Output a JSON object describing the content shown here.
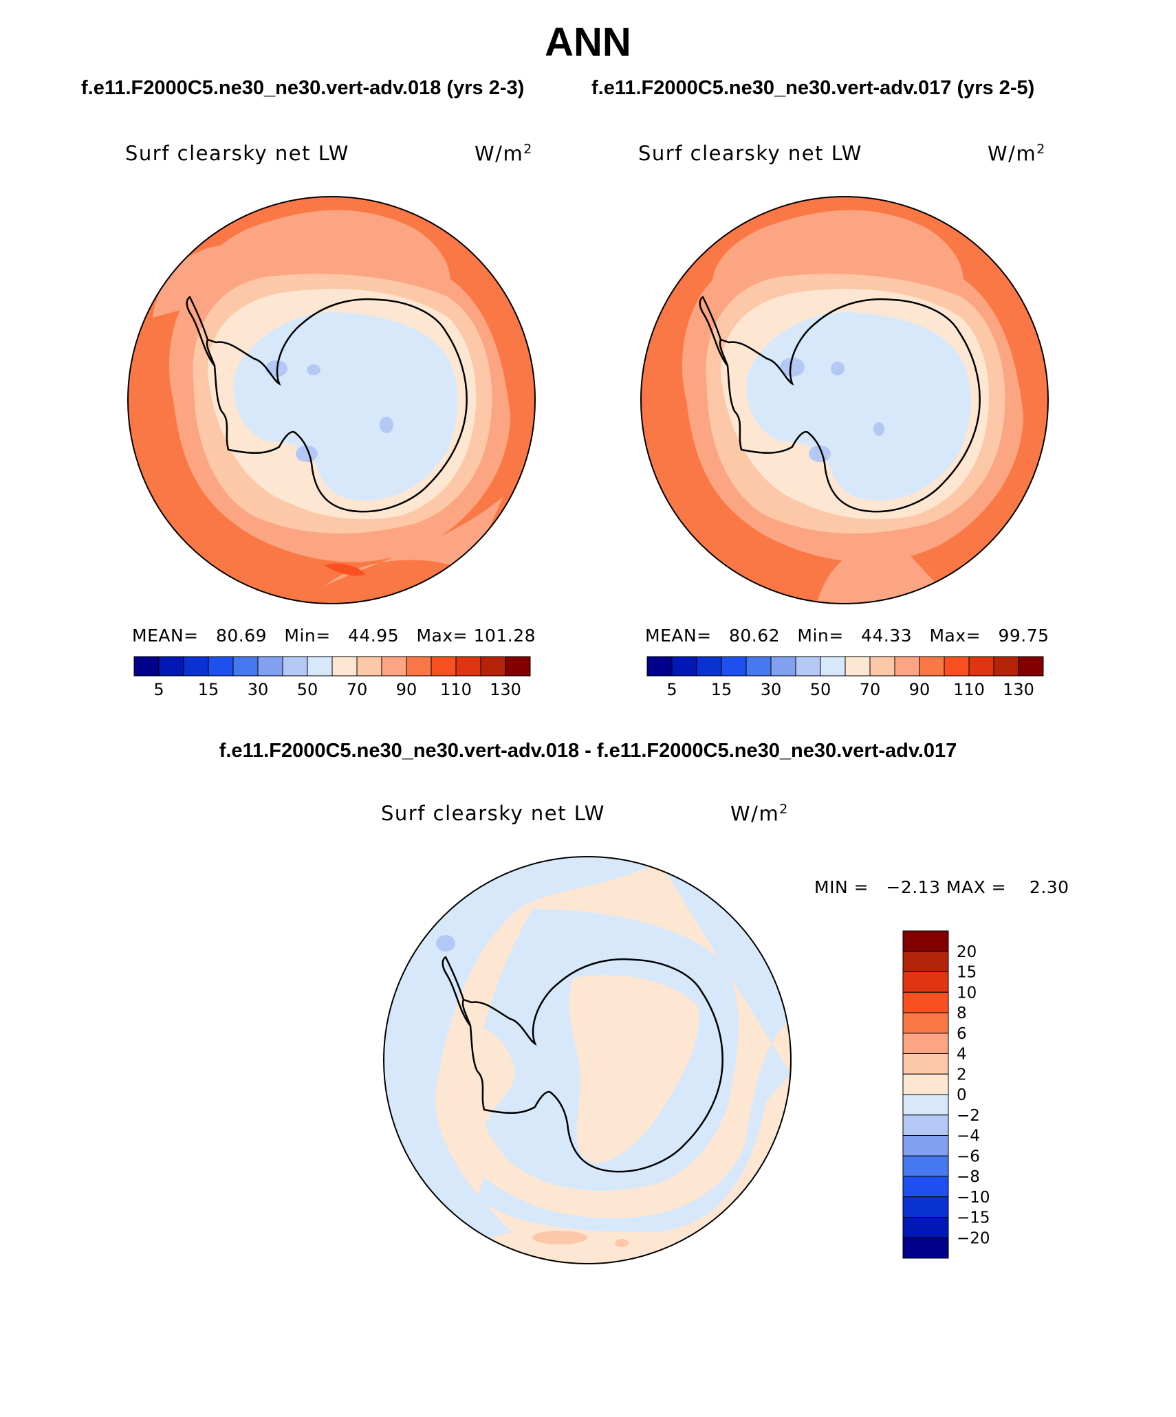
{
  "figure": {
    "title": "ANN",
    "case1_title": "f.e11.F2000C5.ne30_ne30.vert-adv.018 (yrs 2-3)",
    "case2_title": "f.e11.F2000C5.ne30_ne30.vert-adv.017 (yrs 2-5)",
    "diff_title": "f.e11.F2000C5.ne30_ne30.vert-adv.018 - f.e11.F2000C5.ne30_ne30.vert-adv.017"
  },
  "panels": {
    "left": {
      "variable": "Surf clearsky net LW",
      "units_base": "W/m",
      "units_exp": "2",
      "mean_label": "MEAN=",
      "mean": "80.69",
      "min_label": "Min=",
      "min": "44.95",
      "max_label": "Max=",
      "max": "101.28"
    },
    "right": {
      "variable": "Surf clearsky net LW",
      "units_base": "W/m",
      "units_exp": "2",
      "mean_label": "MEAN=",
      "mean": "80.62",
      "min_label": "Min=",
      "min": "44.33",
      "max_label": "Max=",
      "max": "99.75"
    },
    "diff": {
      "variable": "Surf clearsky net LW",
      "units_base": "W/m",
      "units_exp": "2",
      "minmax": "MIN =   −2.13 MAX =    2.30"
    }
  },
  "colorbar_abs": {
    "colors": [
      "#00008b",
      "#0019b4",
      "#0a32d2",
      "#1e50f0",
      "#4678f0",
      "#82a0f0",
      "#b4c8f5",
      "#d7e8fa",
      "#fde6d2",
      "#fcc8a8",
      "#fba582",
      "#fa7846",
      "#fa5020",
      "#e13410",
      "#b42408",
      "#820000"
    ],
    "tick_labels": [
      "5",
      "15",
      "30",
      "50",
      "70",
      "90",
      "110",
      "130"
    ]
  },
  "colorbar_diff": {
    "colors": [
      "#820000",
      "#b42408",
      "#e13410",
      "#fa5020",
      "#fa7846",
      "#fba582",
      "#fcc8a8",
      "#fde6d2",
      "#d7e8fa",
      "#b4c8f5",
      "#82a0f0",
      "#4678f0",
      "#1e50f0",
      "#0a32d2",
      "#0019b4",
      "#00008b"
    ],
    "tick_labels": [
      "20",
      "15",
      "10",
      "8",
      "6",
      "4",
      "2",
      "0",
      "−2",
      "−4",
      "−6",
      "−8",
      "−10",
      "−15",
      "−20"
    ]
  },
  "map_colors": {
    "ocean_far": "#fa7846",
    "ocean_mid": "#fba582",
    "coast_band": "#fcc8a8",
    "ice_edge": "#fde6d2",
    "interior": "#d7e8fa",
    "low_spots": "#b4c8f5",
    "diff_pos": "#fde6d2",
    "diff_neg": "#d7e8fa",
    "diff_neg2": "#b4c8f5",
    "diff_pos2": "#fcc8a8"
  }
}
